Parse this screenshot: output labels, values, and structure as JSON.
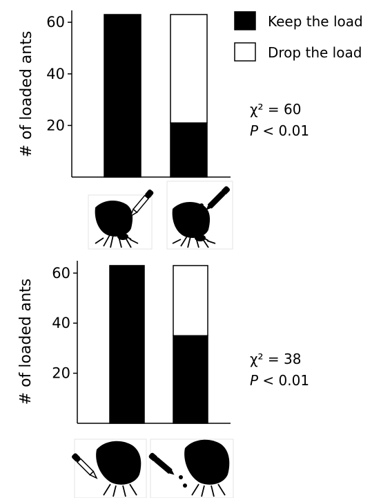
{
  "legend": {
    "keep_label": "Keep the load",
    "drop_label": "Drop the load",
    "keep_color": "#000000",
    "drop_color": "#ffffff"
  },
  "chart_data": [
    {
      "type": "bar",
      "stacked": true,
      "categories": [
        "",
        ""
      ],
      "series": [
        {
          "name": "Keep the load",
          "values": [
            63,
            21
          ]
        },
        {
          "name": "Drop the load",
          "values": [
            0,
            42
          ]
        }
      ],
      "ylabel": "# of loaded ants",
      "yticks": [
        20,
        40,
        60
      ],
      "ylim": [
        0,
        65
      ],
      "stats": {
        "chi": "χ² = 60",
        "p_italic": "P",
        "p_rest": " < 0.01"
      },
      "legend": "top-right"
    },
    {
      "type": "bar",
      "stacked": true,
      "categories": [
        "",
        ""
      ],
      "series": [
        {
          "name": "Keep the load",
          "values": [
            63,
            35
          ]
        },
        {
          "name": "Drop the load",
          "values": [
            0,
            28
          ]
        }
      ],
      "ylabel": "# of loaded ants",
      "yticks": [
        20,
        40,
        60
      ],
      "ylim": [
        0,
        65
      ],
      "stats": {
        "chi": "χ² = 38",
        "p_italic": "P",
        "p_rest": " < 0.01"
      }
    }
  ],
  "icons": [
    "ant-carrying-leaf-dropper-icon",
    "ant-carrying-leaf-dropper-drip-icon"
  ]
}
